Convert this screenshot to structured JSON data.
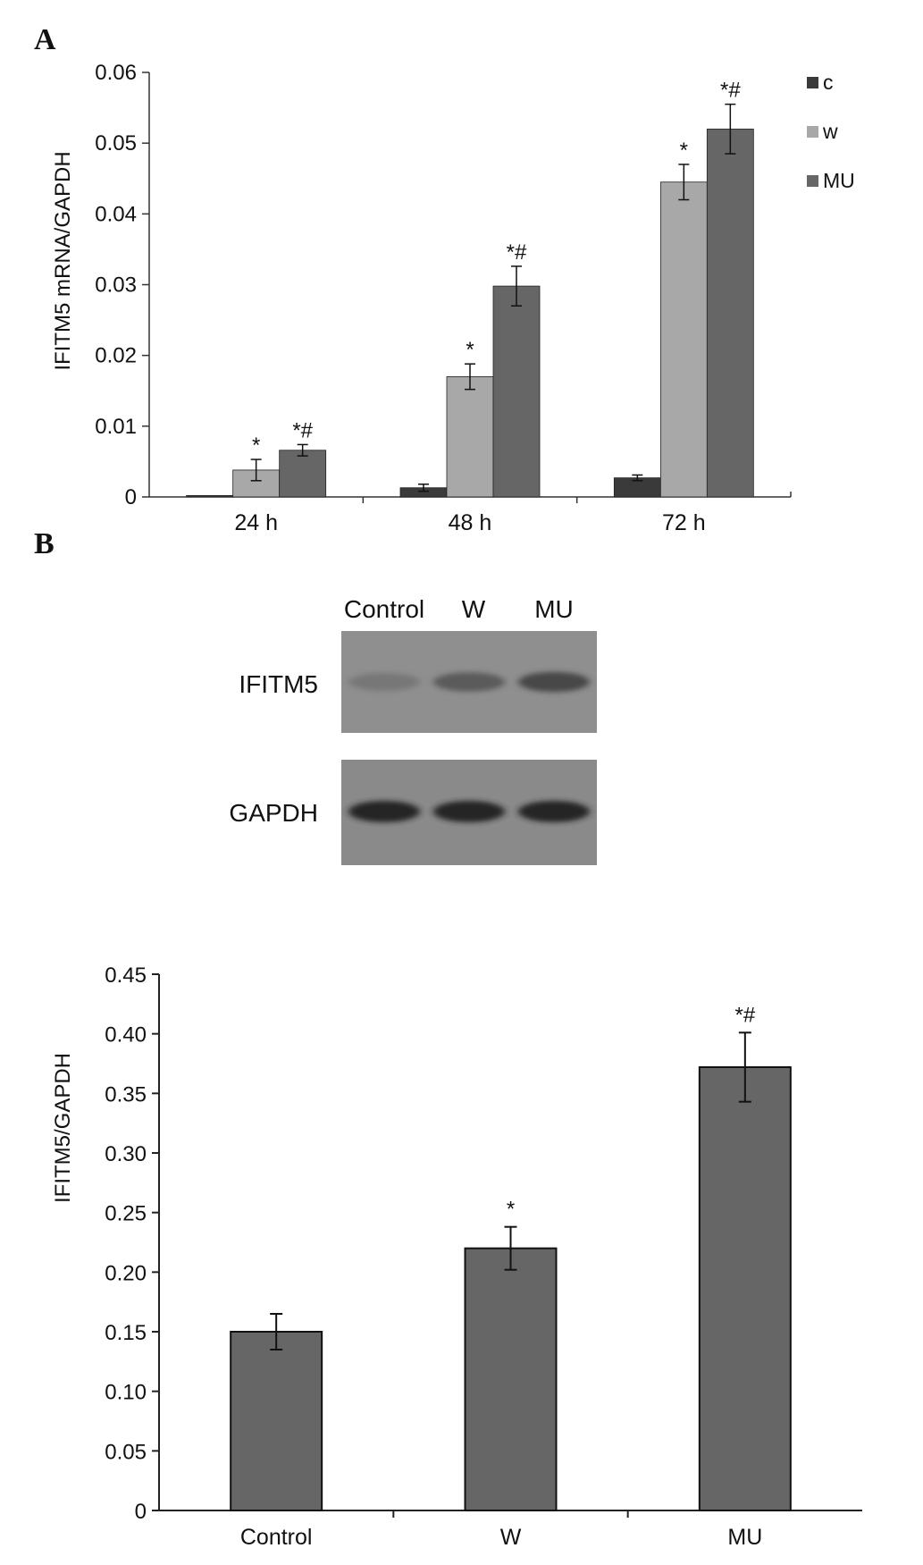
{
  "panels": {
    "a_label": "A",
    "b_label": "B"
  },
  "chart_data": [
    {
      "type": "bar",
      "categories": [
        "24 h",
        "48 h",
        "72 h"
      ],
      "series": [
        {
          "name": "c",
          "color": "#3a3a3a",
          "values": [
            0.0002,
            0.0013,
            0.0027
          ],
          "errors": [
            0,
            0.0005,
            0.0004
          ],
          "annotations": [
            "",
            "",
            ""
          ]
        },
        {
          "name": "w",
          "color": "#a8a8a8",
          "values": [
            0.0038,
            0.017,
            0.0445
          ],
          "errors": [
            0.0015,
            0.0018,
            0.0025
          ],
          "annotations": [
            "*",
            "*",
            "*"
          ]
        },
        {
          "name": "MU",
          "color": "#666666",
          "values": [
            0.0066,
            0.0298,
            0.052
          ],
          "errors": [
            0.0008,
            0.0028,
            0.0035
          ],
          "annotations": [
            "*#",
            "*#",
            "*#"
          ]
        }
      ],
      "ylabel": "IFITM5 mRNA/GAPDH",
      "ylim": [
        0,
        0.06
      ],
      "yticks": [
        "0",
        "0.01",
        "0.02",
        "0.03",
        "0.04",
        "0.05",
        "0.06"
      ],
      "legend": "right"
    },
    {
      "type": "bar",
      "categories": [
        "Control",
        "W",
        "MU"
      ],
      "values": [
        0.15,
        0.22,
        0.372
      ],
      "errors": [
        0.015,
        0.018,
        0.029
      ],
      "annotations": [
        "",
        "*",
        "*#"
      ],
      "color": "#666666",
      "ylabel": "IFITM5/GAPDH",
      "ylim": [
        0,
        0.45
      ],
      "yticks": [
        "0",
        "0.05",
        "0.10",
        "0.15",
        "0.20",
        "0.25",
        "0.30",
        "0.35",
        "0.40",
        "0.45"
      ]
    }
  ],
  "blot": {
    "lanes": [
      "Control",
      "W",
      "MU"
    ],
    "rows": [
      {
        "label": "IFITM5",
        "intensities": [
          0.35,
          0.6,
          0.75
        ]
      },
      {
        "label": "GAPDH",
        "intensities": [
          0.95,
          0.95,
          0.95
        ]
      }
    ]
  }
}
